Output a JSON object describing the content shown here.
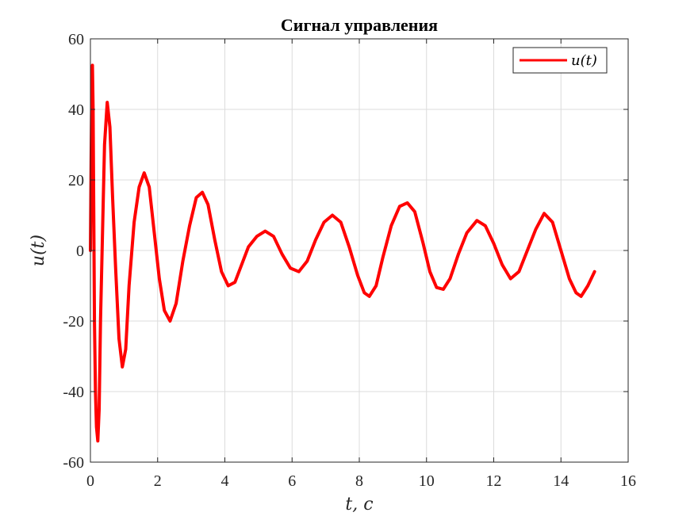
{
  "chart_data": {
    "type": "line",
    "title": "Сигнал управления",
    "xlabel": "t, c",
    "ylabel": "u(t)",
    "xlim": [
      0,
      16
    ],
    "ylim": [
      -60,
      60
    ],
    "xticks": [
      0,
      2,
      4,
      6,
      8,
      10,
      12,
      14,
      16
    ],
    "yticks": [
      -60,
      -40,
      -20,
      0,
      20,
      40,
      60
    ],
    "grid": true,
    "legend_position": "top-right",
    "series": [
      {
        "name": "u(t)",
        "color": "#ff0000",
        "points": [
          [
            0.0,
            0
          ],
          [
            0.02,
            25
          ],
          [
            0.04,
            45
          ],
          [
            0.06,
            52.5
          ],
          [
            0.08,
            40
          ],
          [
            0.1,
            10
          ],
          [
            0.12,
            -20
          ],
          [
            0.15,
            -40
          ],
          [
            0.18,
            -50
          ],
          [
            0.22,
            -54
          ],
          [
            0.26,
            -45
          ],
          [
            0.3,
            -20
          ],
          [
            0.36,
            5
          ],
          [
            0.42,
            30
          ],
          [
            0.5,
            42
          ],
          [
            0.58,
            35
          ],
          [
            0.66,
            15
          ],
          [
            0.75,
            -5
          ],
          [
            0.85,
            -25
          ],
          [
            0.95,
            -33
          ],
          [
            1.05,
            -28
          ],
          [
            1.15,
            -10
          ],
          [
            1.3,
            8
          ],
          [
            1.45,
            18
          ],
          [
            1.6,
            22
          ],
          [
            1.75,
            18
          ],
          [
            1.9,
            5
          ],
          [
            2.05,
            -8
          ],
          [
            2.2,
            -17
          ],
          [
            2.37,
            -20
          ],
          [
            2.55,
            -15
          ],
          [
            2.75,
            -3
          ],
          [
            2.95,
            7
          ],
          [
            3.15,
            15
          ],
          [
            3.33,
            16.5
          ],
          [
            3.5,
            13
          ],
          [
            3.7,
            3
          ],
          [
            3.9,
            -6
          ],
          [
            4.1,
            -10
          ],
          [
            4.3,
            -9
          ],
          [
            4.5,
            -4
          ],
          [
            4.7,
            1
          ],
          [
            4.95,
            4
          ],
          [
            5.2,
            5.5
          ],
          [
            5.45,
            4
          ],
          [
            5.7,
            -1
          ],
          [
            5.95,
            -5
          ],
          [
            6.2,
            -6
          ],
          [
            6.45,
            -3
          ],
          [
            6.7,
            3
          ],
          [
            6.95,
            8
          ],
          [
            7.2,
            10
          ],
          [
            7.45,
            8
          ],
          [
            7.7,
            1
          ],
          [
            7.95,
            -7
          ],
          [
            8.15,
            -12
          ],
          [
            8.3,
            -13
          ],
          [
            8.5,
            -10
          ],
          [
            8.7,
            -2
          ],
          [
            8.95,
            7
          ],
          [
            9.2,
            12.5
          ],
          [
            9.43,
            13.5
          ],
          [
            9.65,
            11
          ],
          [
            9.9,
            2
          ],
          [
            10.1,
            -6
          ],
          [
            10.3,
            -10.5
          ],
          [
            10.5,
            -11
          ],
          [
            10.7,
            -8
          ],
          [
            10.95,
            -1
          ],
          [
            11.2,
            5
          ],
          [
            11.5,
            8.5
          ],
          [
            11.75,
            7
          ],
          [
            12.0,
            2
          ],
          [
            12.25,
            -4
          ],
          [
            12.5,
            -8
          ],
          [
            12.75,
            -6
          ],
          [
            13.0,
            0
          ],
          [
            13.25,
            6
          ],
          [
            13.5,
            10.5
          ],
          [
            13.75,
            8
          ],
          [
            14.0,
            0
          ],
          [
            14.25,
            -8
          ],
          [
            14.45,
            -12
          ],
          [
            14.6,
            -13
          ],
          [
            14.8,
            -10
          ],
          [
            15.0,
            -6
          ]
        ]
      }
    ]
  }
}
